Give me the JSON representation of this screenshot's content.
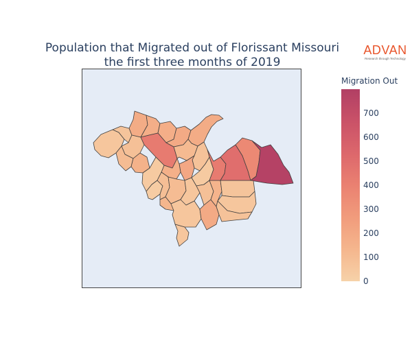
{
  "title": {
    "line1": "Population that Migrated out of Florissant Missouri",
    "line2": "the first three months of 2019"
  },
  "logo": {
    "word": "ADVAN",
    "tagline": "Research through Technology"
  },
  "colors": {
    "brand_orange": "#e8542a",
    "map_background": "#e5ecf6",
    "colorscale": [
      "#f6d2a9",
      "#f5b78e",
      "#f19c7c",
      "#ea8171",
      "#dd686c",
      "#ca5268",
      "#b13f64"
    ]
  },
  "colorbar": {
    "title": "Migration Out",
    "min": 0,
    "max": 800,
    "ticks": [
      "0",
      "100",
      "200",
      "300",
      "400",
      "500",
      "600",
      "700"
    ]
  },
  "chart_data": {
    "type": "choropleth",
    "variable": "Migration Out",
    "regions": [
      {
        "id": "t1",
        "value": 60
      },
      {
        "id": "t2",
        "value": 70
      },
      {
        "id": "t3",
        "value": 190
      },
      {
        "id": "t4",
        "value": 90
      },
      {
        "id": "t5",
        "value": 110
      },
      {
        "id": "t6",
        "value": 160
      },
      {
        "id": "t7",
        "value": 180
      },
      {
        "id": "t8",
        "value": 180
      },
      {
        "id": "t9",
        "value": 430
      },
      {
        "id": "t10",
        "value": 200
      },
      {
        "id": "t11",
        "value": 190
      },
      {
        "id": "t12",
        "value": 120
      },
      {
        "id": "t13",
        "value": 80
      },
      {
        "id": "t14",
        "value": 210
      },
      {
        "id": "t15",
        "value": 170
      },
      {
        "id": "t16",
        "value": 40
      },
      {
        "id": "t17",
        "value": 30
      },
      {
        "id": "t18",
        "value": 100
      },
      {
        "id": "t19",
        "value": 110
      },
      {
        "id": "t20",
        "value": 140
      },
      {
        "id": "t21",
        "value": 60
      },
      {
        "id": "t22",
        "value": 40
      },
      {
        "id": "t23",
        "value": 90
      },
      {
        "id": "t24",
        "value": 60
      },
      {
        "id": "t25",
        "value": 200
      },
      {
        "id": "t26",
        "value": 150
      },
      {
        "id": "t27",
        "value": 70
      },
      {
        "id": "t28",
        "value": 60
      },
      {
        "id": "t29",
        "value": 80
      },
      {
        "id": "t30",
        "value": 430
      },
      {
        "id": "t31",
        "value": 500
      },
      {
        "id": "t32",
        "value": 360
      },
      {
        "id": "t33",
        "value": 780
      }
    ]
  }
}
